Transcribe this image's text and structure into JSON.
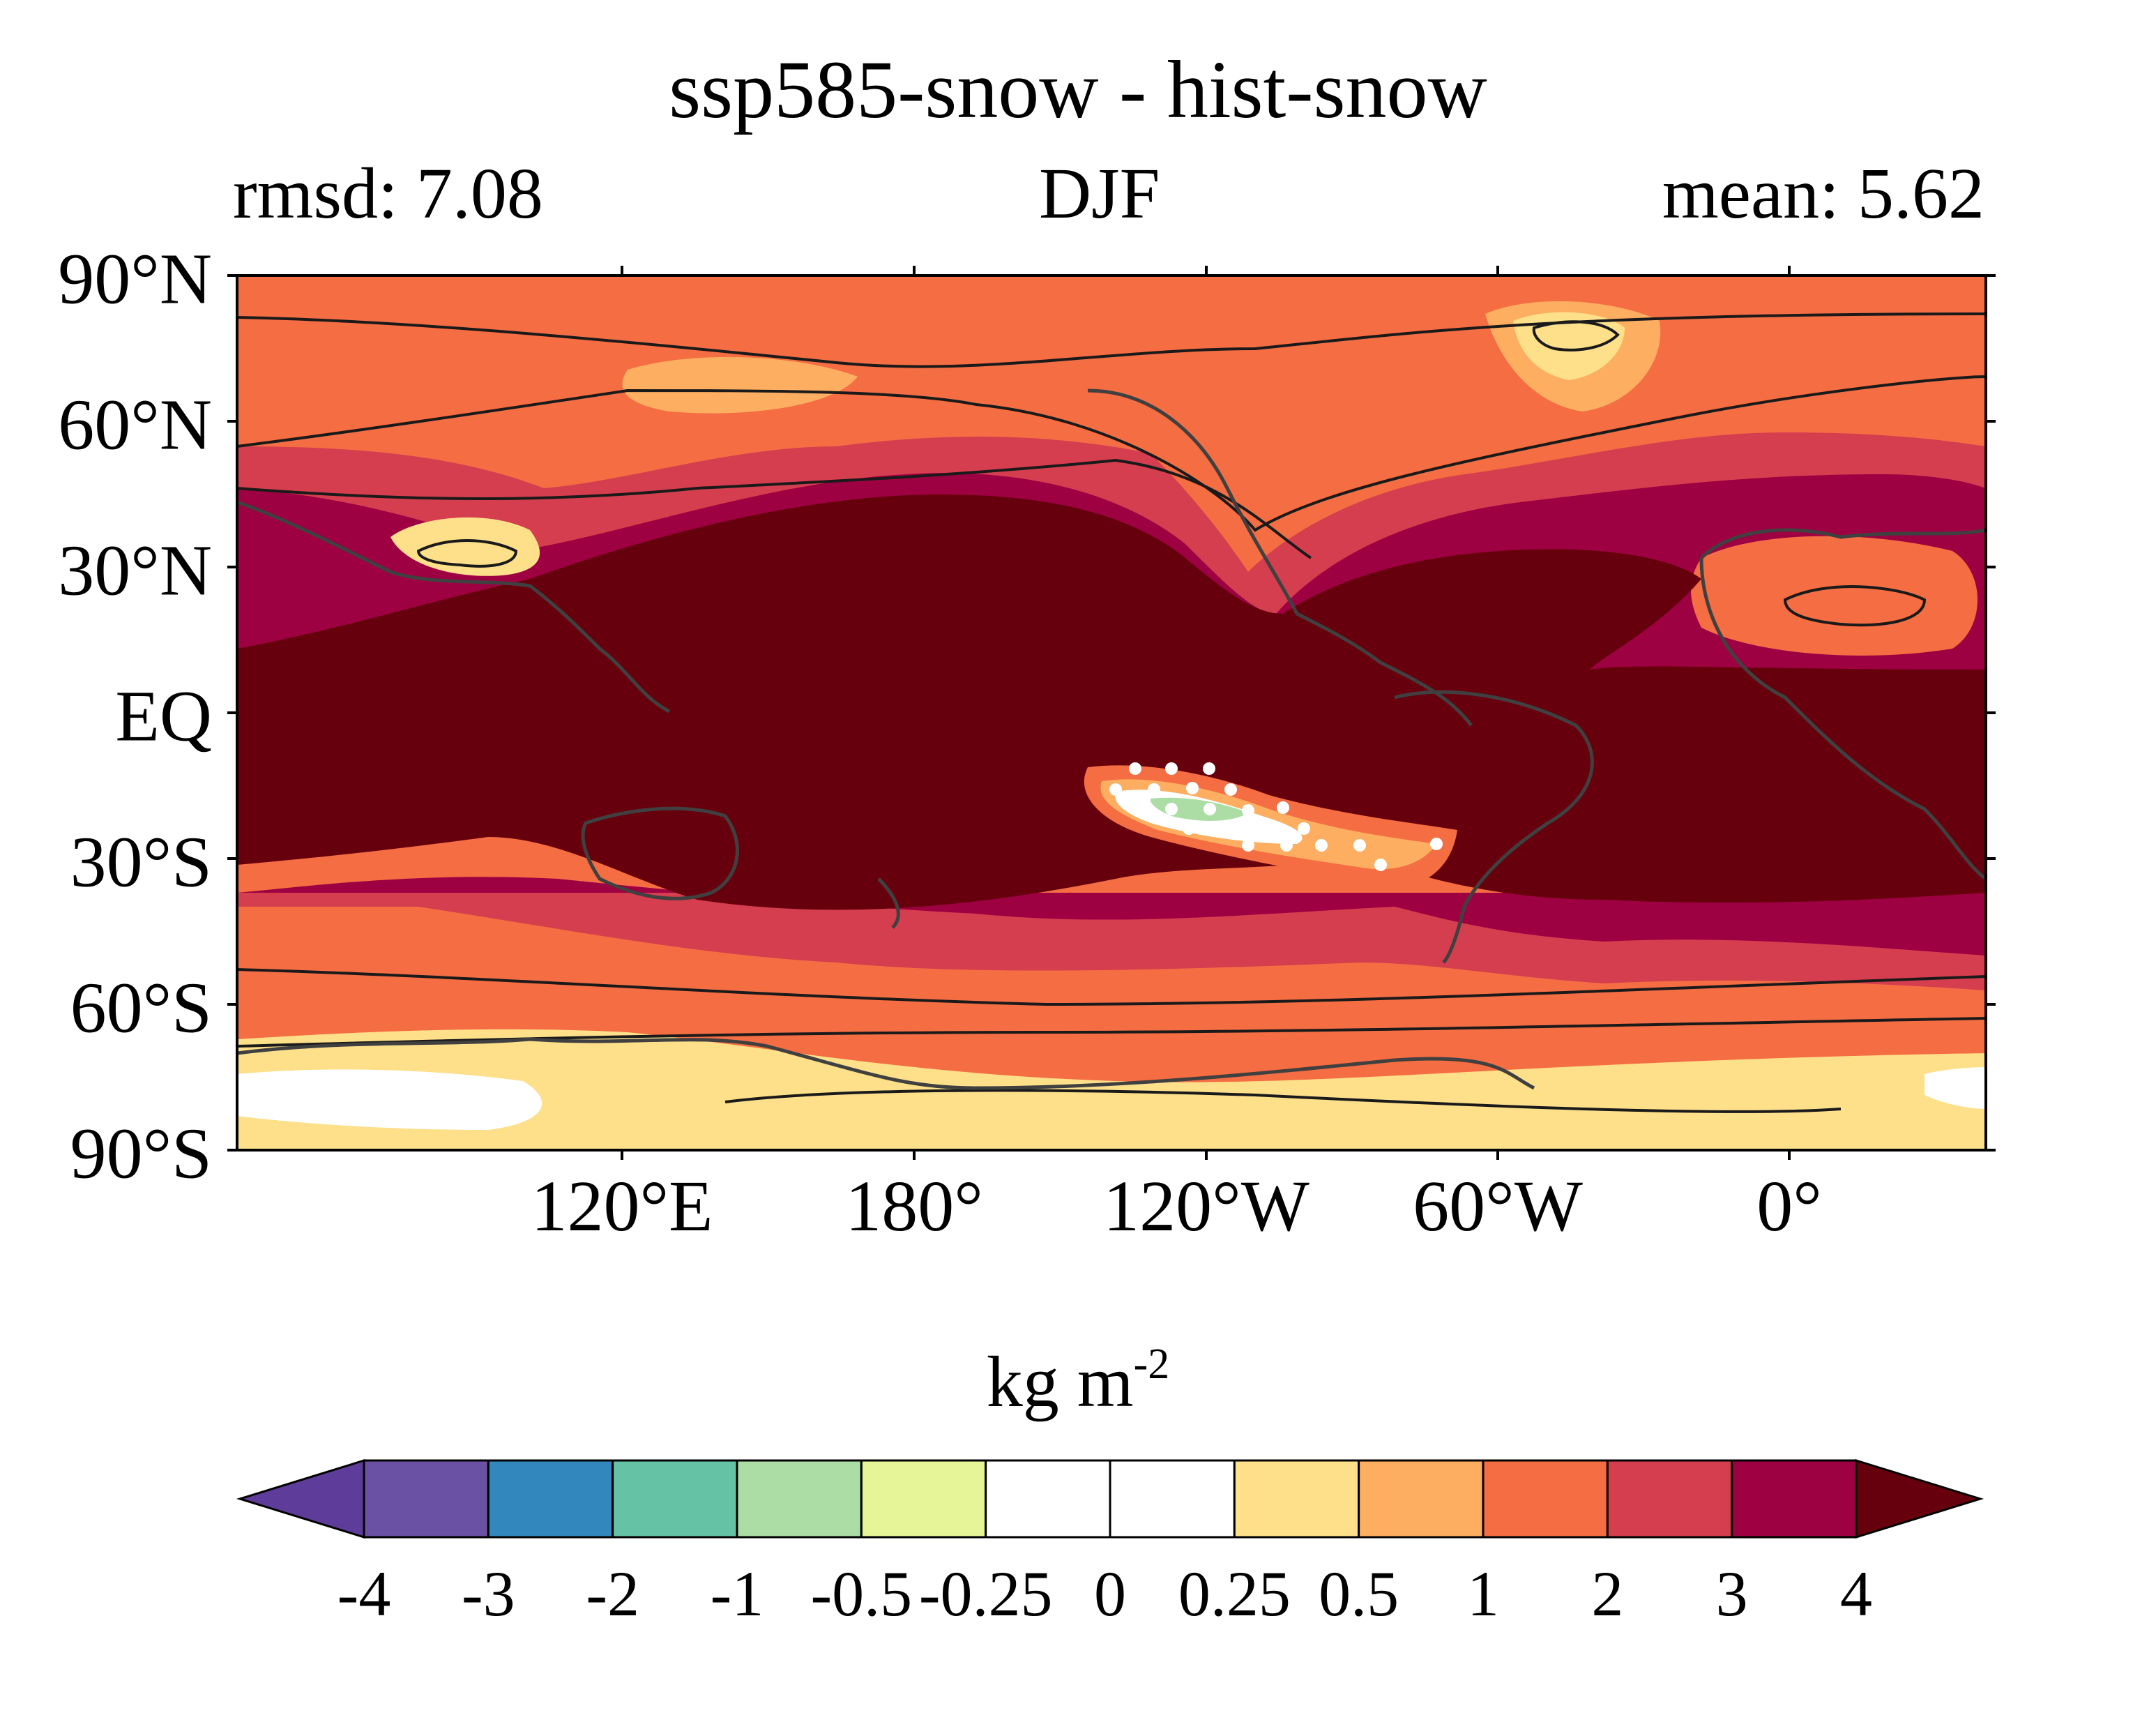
{
  "title": "ssp585-snow - hist-snow",
  "subtitle_left": "rmsd: 7.08",
  "subtitle_center": "DJF",
  "subtitle_right": "mean: 5.62",
  "lat_labels": [
    "90°N",
    "60°N",
    "30°N",
    "EQ",
    "30°S",
    "60°S",
    "90°S"
  ],
  "lon_labels": [
    "120°E",
    "180°",
    "120°W",
    "60°W",
    "0°"
  ],
  "colorbar": {
    "unit_base": "kg m",
    "unit_exp": "-2",
    "tick_labels": [
      "-4",
      "-3",
      "-2",
      "-1",
      "-0.5",
      "-0.25",
      "0",
      "0.25",
      "0.5",
      "1",
      "2",
      "3",
      "4"
    ],
    "colors": [
      "#5e3c99",
      "#6a51a3",
      "#3288bd",
      "#66c2a5",
      "#abdda4",
      "#e6f598",
      "#ffffff",
      "#ffffff",
      "#fee08b",
      "#fdae61",
      "#f46d43",
      "#d53e4f",
      "#9e0142",
      "#67000d"
    ],
    "extend": "both"
  },
  "chart_data": {
    "type": "heatmap",
    "projection": "PlateCarree, centered on 180°",
    "lat_range": [
      -90,
      90
    ],
    "lon_ticks": [
      "120°E",
      "180°",
      "120°W",
      "60°W",
      "0°"
    ],
    "levels": [
      -4,
      -3,
      -2,
      -1,
      -0.5,
      -0.25,
      0,
      0.25,
      0.5,
      1,
      2,
      3,
      4
    ],
    "field": "ssp585-snow - hist-snow",
    "season": "DJF",
    "rmsd": 7.08,
    "mean": 5.62,
    "regions": [
      {
        "region": "tropical band 40°S–40°N",
        "level": ">4"
      },
      {
        "region": "mid-latitude belts 40–55°",
        "level": "2–4"
      },
      {
        "region": "northern high latitudes",
        "level": "1–2"
      },
      {
        "region": "Greenland interior",
        "level": "0.25–1"
      },
      {
        "region": "Tibetan Plateau",
        "level": "0.25–1"
      },
      {
        "region": "Antarctica",
        "level": "0–0.5"
      },
      {
        "region": "southeast Pacific 20–30°S",
        "level": "-1–0"
      }
    ],
    "stippling": "significance dots over southeast Pacific region"
  }
}
